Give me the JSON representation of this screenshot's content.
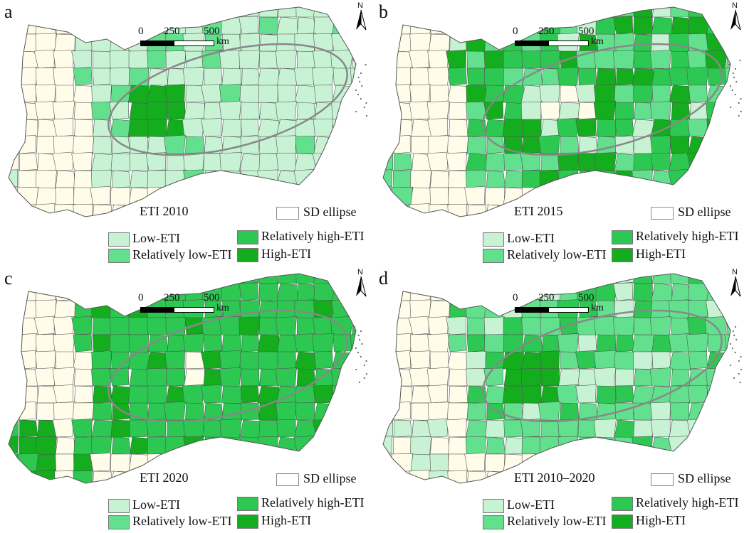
{
  "colors": {
    "non_study": "#fffdea",
    "low": "#c7f3d4",
    "relatively_low": "#63e08d",
    "relatively_high": "#2cc852",
    "high": "#13ad1e",
    "boundary": "#555555",
    "ellipse": "#888888"
  },
  "north_label": "N",
  "scale": {
    "ticks": [
      "0",
      "250",
      "500"
    ],
    "unit": "km"
  },
  "ellipse_label": "SD ellipse",
  "legend": {
    "low": "Low-ETI",
    "relatively_low": "Relatively low-ETI",
    "relatively_high": "Relatively high-ETI",
    "high": "High-ETI"
  },
  "panels": [
    {
      "letter": "a",
      "title": "ETI 2010"
    },
    {
      "letter": "b",
      "title": "ETI 2015"
    },
    {
      "letter": "c",
      "title": "ETI 2020"
    },
    {
      "letter": "d",
      "title": "ETI 2010–2020"
    }
  ]
}
